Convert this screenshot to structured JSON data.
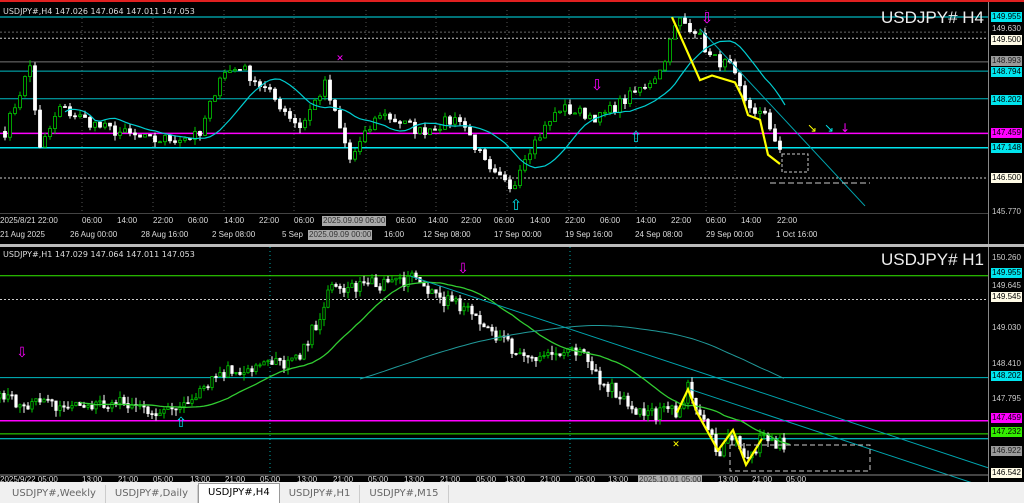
{
  "top_chart": {
    "header": "USDJPY#,H4  147.026 147.064 147.011 147.053",
    "symbol_label": "USDJPY# H4",
    "price_labels": [
      {
        "text": "149.955",
        "bg": "#00e5ee",
        "fg": "#000"
      },
      {
        "text": "149.630",
        "bg": "",
        "fg": "#ccc"
      },
      {
        "text": "149.500",
        "bg": "#fffbe6",
        "fg": "#000"
      },
      {
        "text": "148.993",
        "bg": "#9a9a9a",
        "fg": "#222"
      },
      {
        "text": "148.794",
        "bg": "#00e5ee",
        "fg": "#000"
      },
      {
        "text": "148.202",
        "bg": "#00e5ee",
        "fg": "#000"
      },
      {
        "text": "147.459",
        "bg": "#ff00ff",
        "fg": "#000"
      },
      {
        "text": "147.148",
        "bg": "#00e5ee",
        "fg": "#000"
      },
      {
        "text": "146.500",
        "bg": "#fffbe6",
        "fg": "#000"
      },
      {
        "text": "145.770",
        "bg": "",
        "fg": "#ccc"
      }
    ],
    "time_row1": [
      "2025/8/21 22:00",
      "06:00",
      "14:00",
      "22:00",
      "06:00",
      "14:00",
      "22:00",
      "06:00",
      "06:00",
      "14:00",
      "22:00",
      "06:00",
      "14:00",
      "22:00",
      "06:00",
      "14:00",
      "22:00",
      "06:00",
      "14:00",
      "22:00"
    ],
    "time_row2": [
      "21 Aug 2025",
      "26 Aug 00:00",
      "28 Aug 16:00",
      "2 Sep 08:00",
      "5 Sep",
      "16:00",
      "12 Sep 08:00",
      "17 Sep 00:00",
      "19 Sep 16:00",
      "24 Sep 08:00",
      "29 Sep 00:00",
      "1 Oct 16:00"
    ],
    "crosshair_time1": "2025.09.09 06:00",
    "crosshair_time2": "2025.09.09 00:00"
  },
  "bottom_chart": {
    "header": "USDJPY#,H1  147.029 147.064 147.011 147.053",
    "symbol_label": "USDJPY# H1",
    "price_labels": [
      {
        "text": "150.260",
        "bg": "",
        "fg": "#ccc"
      },
      {
        "text": "149.955",
        "bg": "#00e5ee",
        "fg": "#000"
      },
      {
        "text": "149.645",
        "bg": "",
        "fg": "#ccc"
      },
      {
        "text": "149.545",
        "bg": "#fffbe6",
        "fg": "#000"
      },
      {
        "text": "149.030",
        "bg": "",
        "fg": "#ccc"
      },
      {
        "text": "148.410",
        "bg": "",
        "fg": "#ccc"
      },
      {
        "text": "148.202",
        "bg": "#00e5ee",
        "fg": "#000"
      },
      {
        "text": "147.795",
        "bg": "",
        "fg": "#ccc"
      },
      {
        "text": "147.459",
        "bg": "#ff00ff",
        "fg": "#000"
      },
      {
        "text": "147.232",
        "bg": "#33ee00",
        "fg": "#000"
      },
      {
        "text": "146.922",
        "bg": "#9a9a9a",
        "fg": "#222"
      },
      {
        "text": "146.542",
        "bg": "#fffbe6",
        "fg": "#000"
      }
    ],
    "time_row": [
      "2025/9/22 05:00",
      "13:00",
      "21:00",
      "05:00",
      "13:00",
      "21:00",
      "05:00",
      "13:00",
      "21:00",
      "05:00",
      "13:00",
      "21:00",
      "05:00",
      "13:00",
      "21:00",
      "05:00",
      "13:00",
      "13:00",
      "21:00",
      "05:00"
    ],
    "crosshair_time": "2025.10.01 05:00"
  },
  "tabs": [
    {
      "label": "USDJPY#,Weekly",
      "active": false
    },
    {
      "label": "USDJPY#,Daily",
      "active": false
    },
    {
      "label": "USDJPY#,H4",
      "active": true
    },
    {
      "label": "USDJPY#,H1",
      "active": false
    },
    {
      "label": "USDJPY#,M15",
      "active": false
    }
  ],
  "colors": {
    "bull": "#00c800",
    "bear": "#ffffff",
    "ma_fast_h4": "#00ced1",
    "ma_h1": "#32cd32",
    "zigzag": "#ffff00",
    "resistance": "#ff00ff",
    "support": "#00e5ee"
  }
}
